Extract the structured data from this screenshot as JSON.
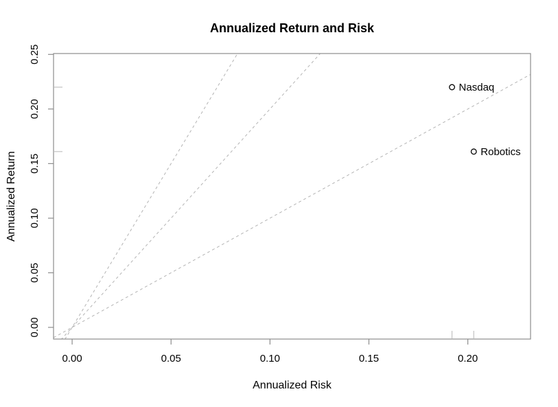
{
  "chart_data": {
    "type": "scatter",
    "title": "Annualized Return and Risk",
    "xlabel": "Annualized Risk",
    "ylabel": "Annualized Return",
    "xlim": [
      -0.0094,
      0.2317
    ],
    "ylim": [
      -0.0107,
      0.2508
    ],
    "grid": false,
    "legend": null,
    "xticks": {
      "values": [
        0,
        0.05,
        0.1,
        0.15,
        0.2
      ],
      "labels": [
        "0.00",
        "0.05",
        "0.10",
        "0.15",
        "0.20"
      ]
    },
    "yticks": {
      "values": [
        0,
        0.05,
        0.1,
        0.15,
        0.2,
        0.25
      ],
      "labels": [
        "0.00",
        "0.05",
        "0.10",
        "0.15",
        "0.20",
        "0.25"
      ]
    },
    "points": [
      {
        "label": "Nasdaq",
        "risk": 0.192,
        "return": 0.22
      },
      {
        "label": "Robotics",
        "risk": 0.203,
        "return": 0.161
      }
    ],
    "reference_lines": [
      {
        "name": "slope-3",
        "slope": 3,
        "intercept": 0,
        "style": "dashed"
      },
      {
        "name": "slope-2",
        "slope": 2,
        "intercept": 0,
        "style": "dashed"
      },
      {
        "name": "slope-1",
        "slope": 1,
        "intercept": 0,
        "style": "dashed"
      }
    ],
    "rug_x": [
      0.192,
      0.203
    ],
    "rug_y": [
      0.22,
      0.161
    ]
  },
  "colors": {
    "background": "#ffffff",
    "axis": "#8c8c8c",
    "text": "#000000",
    "dashed_line": "#b3b3b3",
    "rug": "#c2c2c2",
    "point": "#000000",
    "point_fill": "#ffffff"
  }
}
